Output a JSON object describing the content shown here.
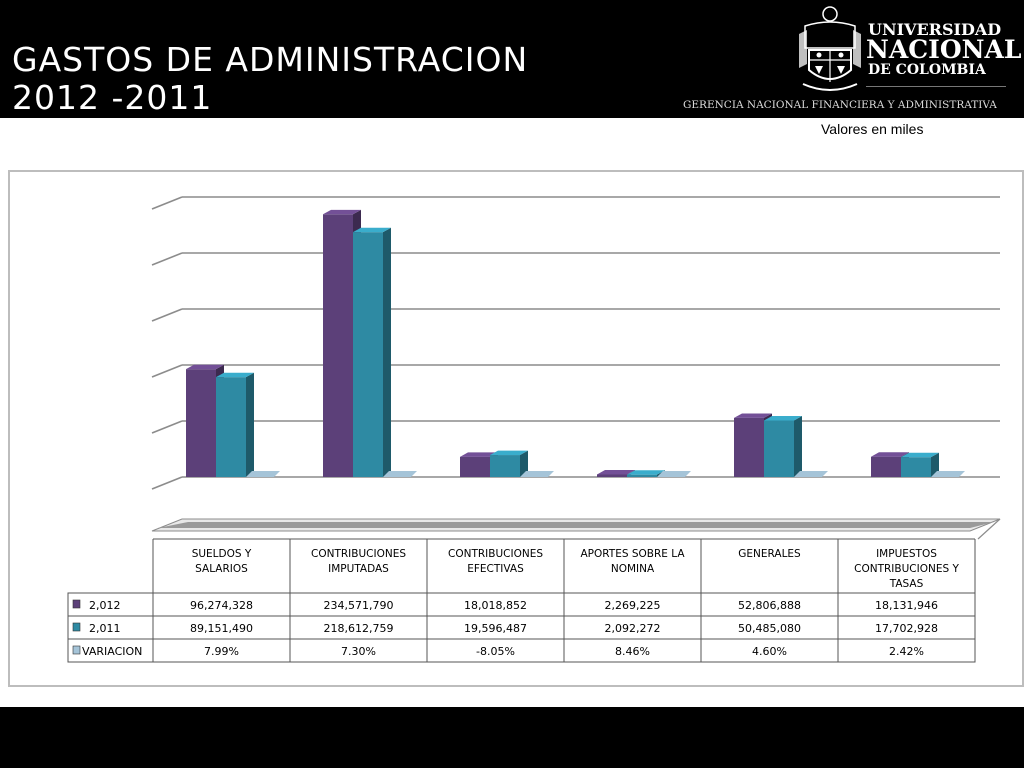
{
  "header": {
    "title_line1": "GASTOS DE ADMINISTRACION",
    "title_line2": "2012 -2011",
    "university_line1": "UNIVERSIDAD",
    "university_line2": "NACIONAL",
    "university_line3": "DE COLOMBIA",
    "subtitle": "GERENCIA NACIONAL FINANCIERA Y ADMINISTRATIVA",
    "logo_icon": "university-shield-logo"
  },
  "units_note": "Valores en miles",
  "colors": {
    "series_2012": "#5c4079",
    "series_2011": "#2e8aa3",
    "series_variacion": "#a5c4d8",
    "header_bg": "#000000"
  },
  "chart_data": {
    "type": "bar",
    "categories": [
      [
        "SUELDOS Y",
        "SALARIOS"
      ],
      [
        "CONTRIBUCIONES",
        "IMPUTADAS"
      ],
      [
        "CONTRIBUCIONES",
        "EFECTIVAS"
      ],
      [
        "APORTES SOBRE LA",
        "NOMINA"
      ],
      [
        "GENERALES"
      ],
      [
        "IMPUESTOS",
        "CONTRIBUCIONES Y",
        "TASAS"
      ]
    ],
    "series": [
      {
        "name": "2,012",
        "values": [
          96274328,
          234571790,
          18018852,
          2269225,
          52806888,
          18131946
        ],
        "labels": [
          "96,274,328",
          "234,571,790",
          "18,018,852",
          "2,269,225",
          "52,806,888",
          "18,131,946"
        ]
      },
      {
        "name": "2,011",
        "values": [
          89151490,
          218612759,
          19596487,
          2092272,
          50485080,
          17702928
        ],
        "labels": [
          "89,151,490",
          "218,612,759",
          "19,596,487",
          "2,092,272",
          "50,485,080",
          "17,702,928"
        ]
      },
      {
        "name": "VARIACION",
        "values": [
          7.99,
          7.3,
          -8.05,
          8.46,
          4.6,
          2.42
        ],
        "labels": [
          "7.99%",
          "7.30%",
          "-8.05%",
          "8.46%",
          "4.60%",
          "2.42%"
        ]
      }
    ],
    "ylim": [
      0,
      250000000
    ],
    "grid": true,
    "legend": "data-table"
  }
}
